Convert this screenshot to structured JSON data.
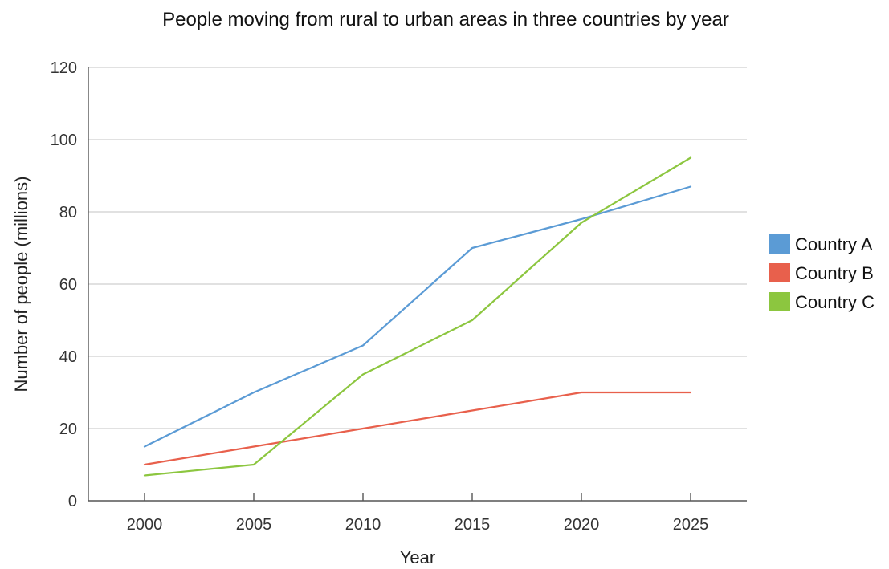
{
  "chart_data": {
    "type": "line",
    "title": "People moving from rural to urban areas in three countries by year",
    "xlabel": "Year",
    "ylabel": "Number of people (millions)",
    "x": [
      2000,
      2005,
      2010,
      2015,
      2020,
      2025
    ],
    "x_tick_labels": [
      "2000",
      "2005",
      "2010",
      "2015",
      "2020",
      "2025"
    ],
    "ylim": [
      0,
      120
    ],
    "y_ticks": [
      0,
      20,
      40,
      60,
      80,
      100,
      120
    ],
    "y_tick_labels": [
      "0",
      "20",
      "40",
      "60",
      "80",
      "100",
      "120"
    ],
    "grid": true,
    "legend_position": "right",
    "series": [
      {
        "name": "Country A",
        "color": "#5b9bd5",
        "values": [
          15,
          30,
          43,
          70,
          78,
          87
        ]
      },
      {
        "name": "Country B",
        "color": "#e8604c",
        "values": [
          10,
          15,
          20,
          25,
          30,
          30
        ]
      },
      {
        "name": "Country C",
        "color": "#8cc63f",
        "values": [
          7,
          10,
          35,
          50,
          77,
          95
        ]
      }
    ]
  }
}
